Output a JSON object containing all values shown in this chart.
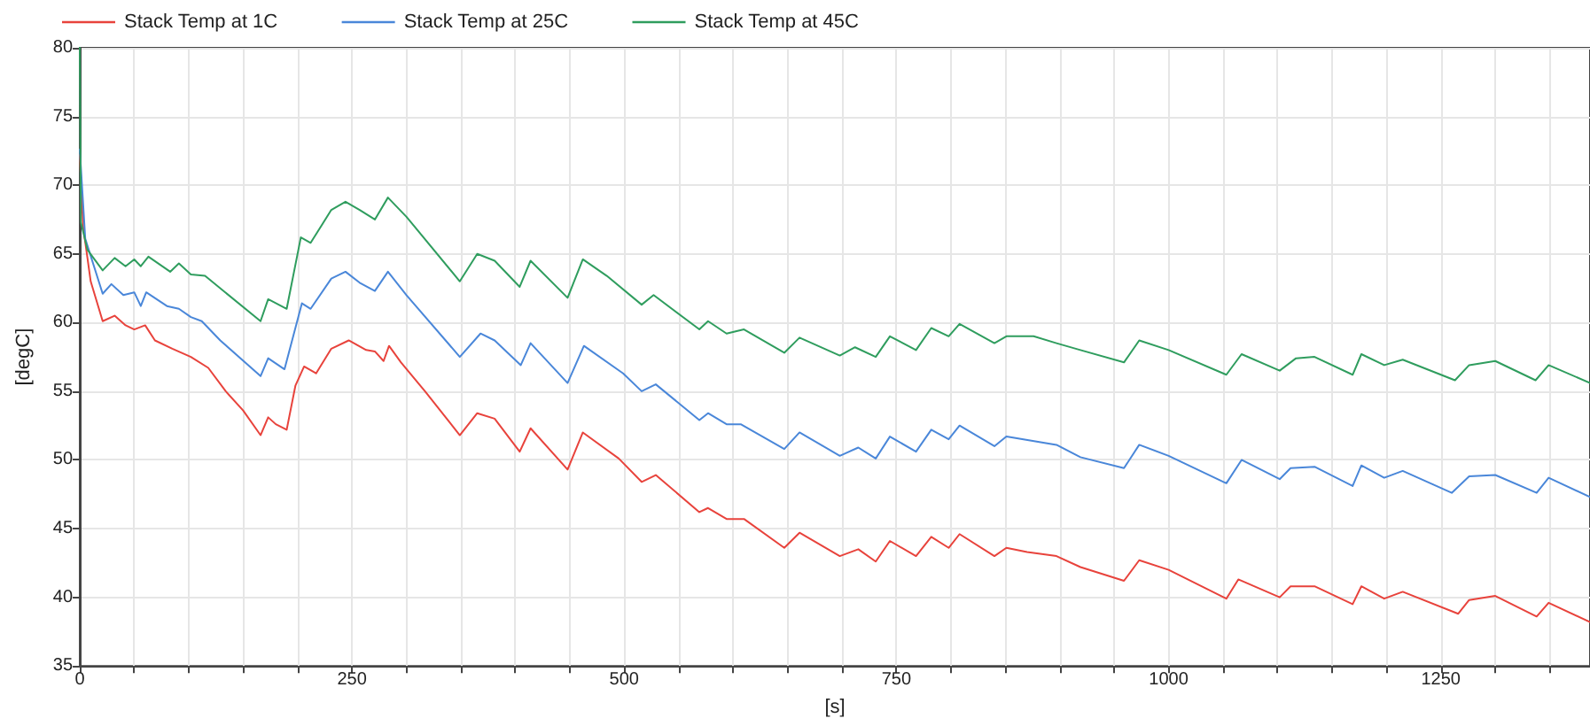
{
  "chart_data": {
    "type": "line",
    "xlabel": "[s]",
    "ylabel": "[degC]",
    "xlim": [
      0,
      1387
    ],
    "ylim": [
      35,
      80
    ],
    "xticks": [
      0,
      {
        "value": 50,
        "label": null
      },
      {
        "value": 100,
        "label": null
      },
      {
        "value": 150,
        "label": null
      },
      {
        "value": 200,
        "label": null
      },
      250,
      {
        "value": 300,
        "label": null
      },
      {
        "value": 350,
        "label": null
      },
      {
        "value": 400,
        "label": null
      },
      {
        "value": 450,
        "label": null
      },
      500,
      {
        "value": 550,
        "label": null
      },
      {
        "value": 600,
        "label": null
      },
      {
        "value": 650,
        "label": null
      },
      {
        "value": 700,
        "label": null
      },
      750,
      {
        "value": 800,
        "label": null
      },
      {
        "value": 850,
        "label": null
      },
      {
        "value": 900,
        "label": null
      },
      {
        "value": 950,
        "label": null
      },
      1000,
      {
        "value": 1050,
        "label": null
      },
      {
        "value": 1100,
        "label": null
      },
      {
        "value": 1150,
        "label": null
      },
      {
        "value": 1200,
        "label": null
      },
      1250,
      {
        "value": 1300,
        "label": null
      },
      {
        "value": 1350,
        "label": null
      }
    ],
    "yticks": [
      35,
      40,
      45,
      50,
      55,
      60,
      65,
      70,
      75,
      80
    ],
    "grid": true,
    "legend": "top left",
    "line_style": "solid",
    "series": [
      {
        "name": "Stack Temp at 1C",
        "color": "#e8433c",
        "x": [
          0,
          3,
          10,
          21,
          32,
          42,
          50,
          60,
          69,
          85,
          102,
          118,
          134,
          150,
          166,
          173,
          180,
          190,
          198,
          206,
          217,
          231,
          247,
          263,
          271,
          279,
          284,
          295,
          317,
          349,
          365,
          381,
          404,
          414,
          448,
          462,
          495,
          516,
          529,
          569,
          577,
          594,
          610,
          647,
          661,
          698,
          715,
          731,
          744,
          768,
          782,
          798,
          808,
          840,
          851,
          870,
          897,
          919,
          959,
          973,
          1000,
          1053,
          1064,
          1102,
          1112,
          1134,
          1169,
          1177,
          1198,
          1215,
          1266,
          1276,
          1300,
          1338,
          1349,
          1387
        ],
        "values": [
          72.2,
          67,
          63,
          60.1,
          60.5,
          59.8,
          59.5,
          59.8,
          58.7,
          58.1,
          57.5,
          56.7,
          55,
          53.6,
          51.8,
          53.1,
          52.6,
          52.2,
          55.4,
          56.8,
          56.3,
          58.1,
          58.7,
          58,
          57.9,
          57.2,
          58.3,
          57.1,
          55,
          51.8,
          53.4,
          53,
          50.6,
          52.3,
          49.3,
          52,
          50.1,
          48.4,
          48.9,
          46.2,
          46.5,
          45.7,
          45.7,
          43.6,
          44.7,
          43,
          43.5,
          42.6,
          44.1,
          43,
          44.4,
          43.6,
          44.6,
          43,
          43.6,
          43.3,
          43,
          42.2,
          41.2,
          42.7,
          42,
          39.9,
          41.3,
          40,
          40.8,
          40.8,
          39.5,
          40.8,
          39.9,
          40.4,
          38.8,
          39.8,
          40.1,
          38.6,
          39.6,
          38.2
        ]
      },
      {
        "name": "Stack Temp at 25C",
        "color": "#4a87d9",
        "x": [
          0,
          5,
          21,
          29,
          40,
          50,
          56,
          61,
          80,
          91,
          102,
          112,
          129,
          166,
          173,
          188,
          204,
          212,
          231,
          244,
          257,
          271,
          283,
          300,
          349,
          368,
          381,
          405,
          414,
          448,
          463,
          499,
          516,
          529,
          569,
          577,
          594,
          607,
          647,
          661,
          698,
          715,
          731,
          744,
          768,
          782,
          798,
          808,
          840,
          851,
          897,
          919,
          959,
          973,
          1000,
          1053,
          1067,
          1102,
          1112,
          1134,
          1169,
          1177,
          1198,
          1215,
          1260,
          1276,
          1300,
          1338,
          1349,
          1387
        ],
        "values": [
          72.6,
          66.1,
          62.1,
          62.8,
          62,
          62.2,
          61.2,
          62.2,
          61.2,
          61,
          60.4,
          60.1,
          58.7,
          56.1,
          57.4,
          56.6,
          61.4,
          61,
          63.2,
          63.7,
          62.9,
          62.3,
          63.7,
          62,
          57.5,
          59.2,
          58.7,
          56.9,
          58.5,
          55.6,
          58.3,
          56.3,
          55,
          55.5,
          52.9,
          53.4,
          52.6,
          52.6,
          50.8,
          52,
          50.3,
          50.9,
          50.1,
          51.7,
          50.6,
          52.2,
          51.5,
          52.5,
          51,
          51.7,
          51.1,
          50.2,
          49.4,
          51.1,
          50.3,
          48.3,
          50,
          48.6,
          49.4,
          49.5,
          48.1,
          49.6,
          48.7,
          49.2,
          47.6,
          48.8,
          48.9,
          47.6,
          48.7,
          47.3
        ]
      },
      {
        "name": "Stack Temp at 45C",
        "color": "#2f9d5e",
        "x": [
          0,
          1,
          7,
          21,
          32,
          42,
          50,
          56,
          63,
          83,
          91,
          102,
          115,
          166,
          173,
          190,
          203,
          212,
          231,
          244,
          257,
          271,
          283,
          300,
          349,
          365,
          381,
          404,
          414,
          448,
          462,
          484,
          516,
          527,
          569,
          577,
          594,
          610,
          647,
          661,
          698,
          712,
          731,
          744,
          768,
          782,
          798,
          808,
          840,
          851,
          876,
          897,
          919,
          959,
          973,
          1000,
          1053,
          1067,
          1102,
          1117,
          1134,
          1169,
          1177,
          1198,
          1215,
          1263,
          1276,
          1300,
          1337,
          1349,
          1387
        ],
        "values": [
          80,
          67.3,
          65.3,
          63.8,
          64.7,
          64.1,
          64.6,
          64.1,
          64.8,
          63.7,
          64.3,
          63.5,
          63.4,
          60.1,
          61.7,
          61,
          66.2,
          65.8,
          68.2,
          68.8,
          68.2,
          67.5,
          69.1,
          67.7,
          63,
          65,
          64.5,
          62.6,
          64.5,
          61.8,
          64.6,
          63.4,
          61.3,
          62,
          59.5,
          60.1,
          59.2,
          59.5,
          57.8,
          58.9,
          57.6,
          58.2,
          57.5,
          59,
          58,
          59.6,
          59,
          59.9,
          58.5,
          59,
          59,
          58.5,
          58,
          57.1,
          58.7,
          58,
          56.2,
          57.7,
          56.5,
          57.4,
          57.5,
          56.2,
          57.7,
          56.9,
          57.3,
          55.8,
          56.9,
          57.2,
          55.8,
          56.9,
          55.6
        ]
      }
    ]
  }
}
